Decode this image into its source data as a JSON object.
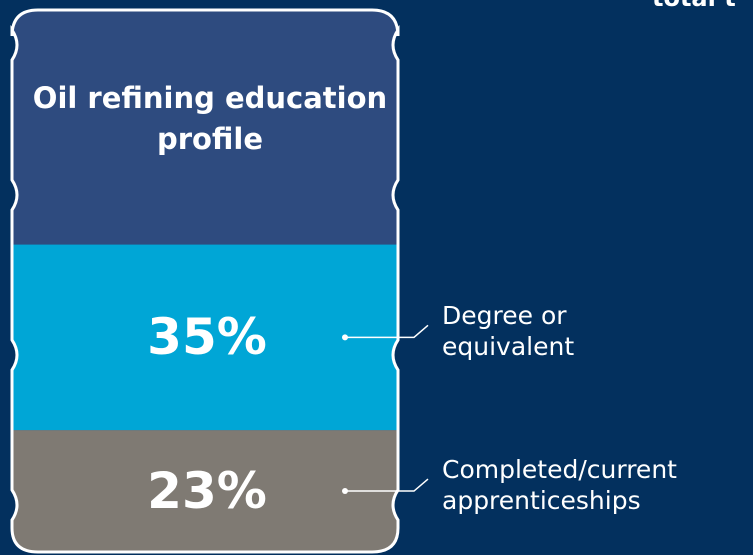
{
  "chart_data": {
    "type": "barrel",
    "title": "Oil refining education profile",
    "annotation": "total t",
    "categories": [
      "Degree or equivalent",
      "Completed/current apprenticeships"
    ],
    "values": [
      35,
      23
    ],
    "value_labels": [
      "35%",
      "23%"
    ],
    "colors": [
      "#00a6d6",
      "#7f7a73"
    ],
    "ylim": [
      0,
      100
    ]
  }
}
